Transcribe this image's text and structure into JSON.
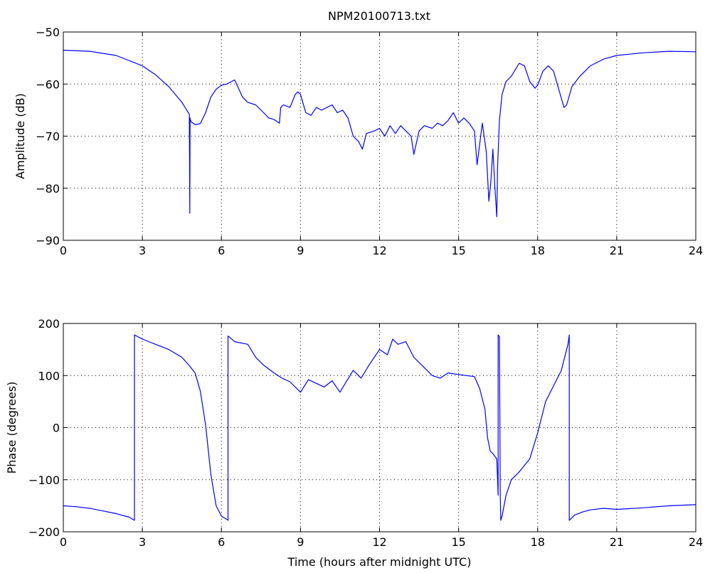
{
  "figure": {
    "title": "NPM20100713.txt"
  },
  "chart_data": [
    {
      "type": "line",
      "title": "NPM20100713.txt",
      "xlabel": "",
      "ylabel": "Amplitude (dB)",
      "xlim": [
        0,
        24
      ],
      "ylim": [
        -90,
        -50
      ],
      "grid": true,
      "xticks": [
        0,
        3,
        6,
        9,
        12,
        15,
        18,
        21,
        24
      ],
      "yticks": [
        -90,
        -80,
        -70,
        -60,
        -50
      ],
      "xtick_labels": [
        "0",
        "3",
        "6",
        "9",
        "12",
        "15",
        "18",
        "21",
        "24"
      ],
      "ytick_labels": [
        "−90",
        "−80",
        "−70",
        "−60",
        "−50"
      ],
      "color": "#0000ff",
      "series": [
        {
          "x": [
            0,
            1,
            2,
            3,
            3.5,
            4,
            4.5,
            4.78,
            4.8,
            4.81,
            4.82,
            4.84,
            5.0,
            5.2,
            5.4,
            5.6,
            5.8,
            6.0,
            6.2,
            6.5,
            6.8,
            7.0,
            7.3,
            7.6,
            7.8,
            8.0,
            8.2,
            8.25,
            8.35,
            8.6,
            8.8,
            8.9,
            9.0,
            9.2,
            9.4,
            9.6,
            9.8,
            10.0,
            10.2,
            10.4,
            10.6,
            10.8,
            11.0,
            11.2,
            11.35,
            11.5,
            11.8,
            12.0,
            12.2,
            12.4,
            12.6,
            12.8,
            13.0,
            13.2,
            13.3,
            13.5,
            13.7,
            14.0,
            14.2,
            14.4,
            14.6,
            14.8,
            15.0,
            15.2,
            15.4,
            15.6,
            15.7,
            15.9,
            16.05,
            16.15,
            16.22,
            16.3,
            16.38,
            16.45,
            16.48,
            16.55,
            16.65,
            16.8,
            17.0,
            17.3,
            17.5,
            17.7,
            17.9,
            18.0,
            18.2,
            18.4,
            18.6,
            18.8,
            19.0,
            19.1,
            19.3,
            19.6,
            20.0,
            20.5,
            21.0,
            22.0,
            23.0,
            24.0
          ],
          "y": [
            -53.5,
            -53.7,
            -54.5,
            -56.5,
            -58.2,
            -60.5,
            -63.5,
            -65.8,
            -84.8,
            -66.5,
            -66.8,
            -67.2,
            -67.8,
            -67.6,
            -65.5,
            -62.5,
            -61.0,
            -60.2,
            -60.0,
            -59.2,
            -62.5,
            -63.5,
            -64.0,
            -65.5,
            -66.5,
            -66.8,
            -67.5,
            -64.5,
            -64.0,
            -64.5,
            -62.0,
            -61.5,
            -62.0,
            -65.5,
            -66.0,
            -64.5,
            -65.0,
            -64.5,
            -64.0,
            -65.5,
            -65.0,
            -66.5,
            -70.0,
            -71.0,
            -72.5,
            -69.5,
            -69.0,
            -68.5,
            -70.0,
            -68.0,
            -69.5,
            -68.0,
            -69.0,
            -70.0,
            -73.5,
            -69.0,
            -68.0,
            -68.5,
            -67.5,
            -68.0,
            -67.0,
            -65.5,
            -67.5,
            -66.5,
            -67.5,
            -69.0,
            -75.5,
            -67.5,
            -73.0,
            -82.5,
            -79.0,
            -72.5,
            -80.0,
            -85.5,
            -76.0,
            -67.0,
            -62.0,
            -59.5,
            -58.5,
            -56.0,
            -56.5,
            -59.5,
            -60.8,
            -60.2,
            -57.5,
            -56.5,
            -57.5,
            -61.0,
            -64.5,
            -64.0,
            -60.5,
            -58.5,
            -56.5,
            -55.2,
            -54.5,
            -54.0,
            -53.7,
            -53.8
          ]
        }
      ]
    },
    {
      "type": "line",
      "title": "",
      "xlabel": "Time (hours after midnight UTC)",
      "ylabel": "Phase (degrees)",
      "xlim": [
        0,
        24
      ],
      "ylim": [
        -200,
        200
      ],
      "grid": true,
      "xticks": [
        0,
        3,
        6,
        9,
        12,
        15,
        18,
        21,
        24
      ],
      "yticks": [
        -200,
        -100,
        0,
        100,
        200
      ],
      "xtick_labels": [
        "0",
        "3",
        "6",
        "9",
        "12",
        "15",
        "18",
        "21",
        "24"
      ],
      "ytick_labels": [
        "−200",
        "−100",
        "0",
        "100",
        "200"
      ],
      "color": "#0000ff",
      "series": [
        {
          "x": [
            0,
            0.5,
            1.0,
            1.5,
            2.0,
            2.5,
            2.7,
            2.7,
            3.0,
            3.5,
            4.0,
            4.5,
            4.8,
            5.0,
            5.2,
            5.4,
            5.6,
            5.8,
            6.0,
            6.2,
            6.25,
            6.25,
            6.5,
            7.0,
            7.3,
            7.6,
            8.0,
            8.3,
            8.6,
            9.0,
            9.3,
            9.6,
            9.9,
            10.2,
            10.5,
            10.7,
            11.0,
            11.3,
            11.6,
            12.0,
            12.3,
            12.5,
            12.7,
            13.0,
            13.3,
            13.6,
            14.0,
            14.3,
            14.6,
            15.0,
            15.3,
            15.6,
            15.8,
            16.0,
            16.1,
            16.2,
            16.3,
            16.45,
            16.5,
            16.5,
            16.55,
            16.58,
            16.6,
            16.65,
            16.8,
            17.0,
            17.3,
            17.7,
            18.0,
            18.3,
            18.6,
            18.9,
            19.15,
            19.2,
            19.2,
            19.4,
            19.7,
            20.0,
            20.5,
            21.0,
            22.0,
            23.0,
            24.0
          ],
          "y": [
            -150,
            -152,
            -155,
            -160,
            -165,
            -172,
            -178,
            178,
            170,
            160,
            150,
            135,
            118,
            105,
            70,
            5,
            -90,
            -150,
            -170,
            -176,
            -178,
            176,
            165,
            160,
            135,
            120,
            105,
            95,
            88,
            68,
            92,
            85,
            78,
            90,
            68,
            85,
            110,
            95,
            120,
            150,
            140,
            170,
            160,
            165,
            135,
            120,
            100,
            95,
            105,
            102,
            100,
            98,
            75,
            35,
            -20,
            -45,
            -50,
            -60,
            -130,
            178,
            175,
            -130,
            -178,
            -170,
            -130,
            -100,
            -85,
            -60,
            -10,
            50,
            80,
            110,
            160,
            178,
            -178,
            -168,
            -162,
            -158,
            -155,
            -157,
            -154,
            -150,
            -148
          ]
        }
      ]
    }
  ]
}
